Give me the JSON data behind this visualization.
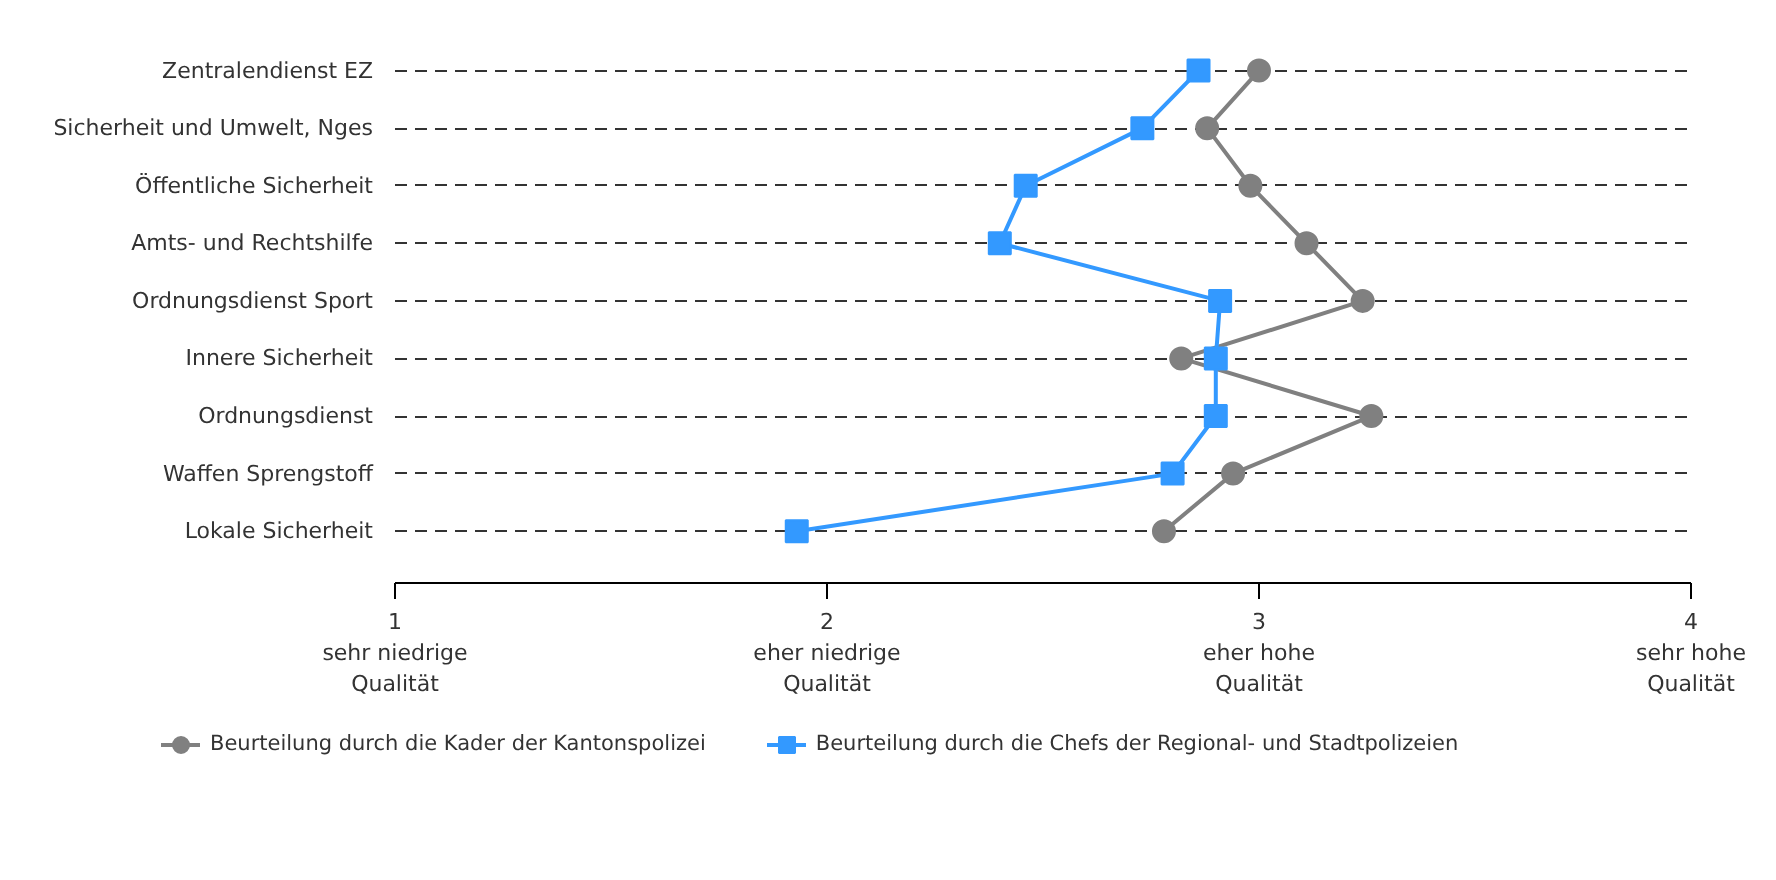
{
  "chart_data": {
    "type": "line",
    "orientation": "horizontal",
    "categories": [
      "Zentralendienst EZ",
      "Sicherheit und Umwelt, Nges",
      "Öffentliche Sicherheit",
      "Amts- und Rechtshilfe",
      "Ordnungsdienst Sport",
      "Innere Sicherheit",
      "Ordnungsdienst",
      "Waffen Sprengstoff",
      "Lokale Sicherheit"
    ],
    "series": [
      {
        "name": "Beurteilung durch die Kader der Kantonspolizei",
        "color": "#808080",
        "marker": "circle",
        "values": [
          3.0,
          2.88,
          2.98,
          3.11,
          3.24,
          2.82,
          3.26,
          2.94,
          2.78
        ]
      },
      {
        "name": "Beurteilung durch die Chefs der Regional- und Stadtpolizeien",
        "color": "#3399ff",
        "marker": "square",
        "values": [
          2.86,
          2.73,
          2.46,
          2.4,
          2.91,
          2.9,
          2.9,
          2.8,
          1.93
        ]
      }
    ],
    "xlim": [
      1,
      4
    ],
    "xticks": [
      {
        "value": 1,
        "label": "1\nsehr niedrige\nQualität"
      },
      {
        "value": 2,
        "label": "2\neher niedrige\nQualität"
      },
      {
        "value": 3,
        "label": "3\neher hohe\nQualität"
      },
      {
        "value": 4,
        "label": "4\nsehr hohe\nQualität"
      }
    ],
    "grid": "y",
    "legend": "bottom",
    "line_style": "solid"
  }
}
